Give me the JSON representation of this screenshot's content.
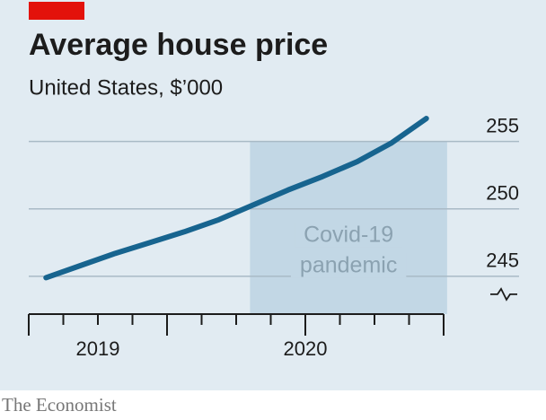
{
  "chart_data": {
    "type": "line",
    "title": "Average house price",
    "subtitle": "United States, $’000",
    "source": "The Economist",
    "categories": [
      null,
      null,
      null,
      null,
      null,
      null,
      null,
      null,
      null,
      null,
      null,
      null
    ],
    "xticks": [
      {
        "value": 1.5,
        "label": "2019"
      },
      {
        "value": 7.5,
        "label": "2020"
      }
    ],
    "series": [
      {
        "name": "Average house price",
        "color": "#17648f",
        "values": [
          244.9,
          245.8,
          246.7,
          247.5,
          248.3,
          249.2,
          250.3,
          251.4,
          252.4,
          253.5,
          254.9,
          256.7
        ]
      }
    ],
    "ylim": [
      242.2,
      257.5
    ],
    "yticks": [
      245,
      250,
      255
    ],
    "grid": true,
    "shaded_region": {
      "from": 5.9,
      "to": 11.6,
      "color": "#c2d7e5",
      "label": [
        "Covid-19",
        "pandemic"
      ]
    }
  }
}
